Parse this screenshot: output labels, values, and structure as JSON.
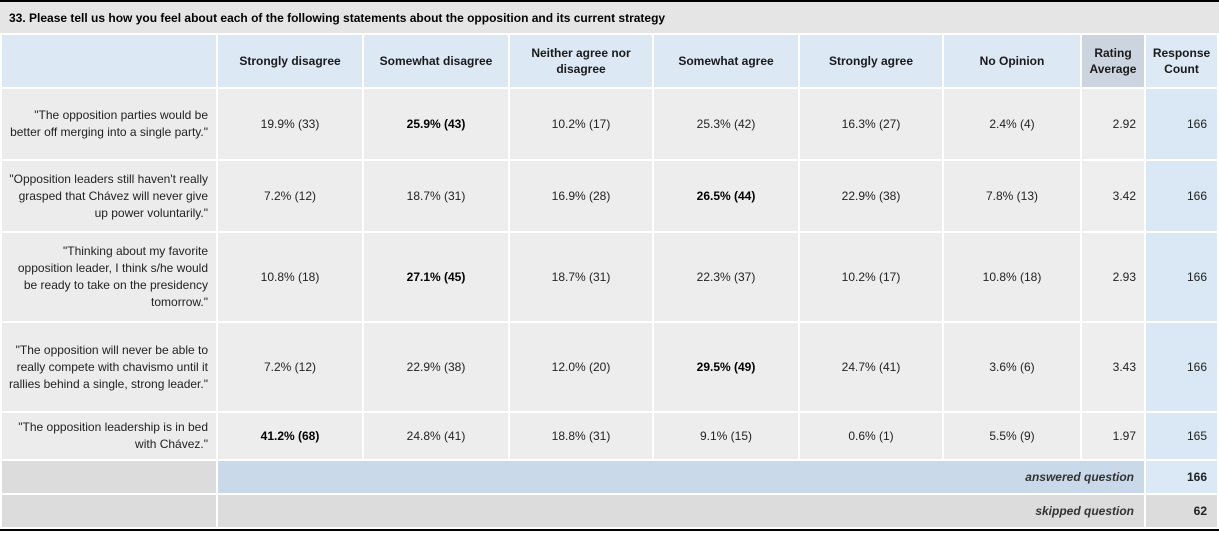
{
  "title": "33. Please tell us how you feel about each of the following statements about the opposition and its current strategy",
  "colors": {
    "header_blue": "#dce8f4",
    "rating_header_gray_blue": "#ccd5df",
    "count_header_blue": "#dde9f5",
    "row_gray": "#ededed",
    "count_column_blue": "#dae8f6",
    "answered_row_blue": "#c9d9e9",
    "skipped_row_gray": "#dcdcdc",
    "title_bar_gray": "#e5e5e5"
  },
  "chart_data": {
    "type": "table",
    "title": "33. Please tell us how you feel about each of the following statements about the opposition and its current strategy",
    "headers": [
      "Strongly disagree",
      "Somewhat disagree",
      "Neither agree nor disagree",
      "Somewhat agree",
      "Strongly agree",
      "No Opinion",
      "Rating Average",
      "Response Count"
    ],
    "rows": [
      {
        "statement": "\"The opposition parties would be better off merging into a single party.\"",
        "values": [
          "19.9% (33)",
          "25.9% (43)",
          "10.2% (17)",
          "25.3% (42)",
          "16.3% (27)",
          "2.4% (4)"
        ],
        "modal_index": 1,
        "modal_answer": "Somewhat disagree",
        "rating_average": "2.92",
        "response_count": "166"
      },
      {
        "statement": "\"Opposition leaders still haven't really grasped that Chávez will never give up power voluntarily.\"",
        "values": [
          "7.2% (12)",
          "18.7% (31)",
          "16.9% (28)",
          "26.5% (44)",
          "22.9% (38)",
          "7.8% (13)"
        ],
        "modal_index": 3,
        "modal_answer": "Somewhat agree",
        "rating_average": "3.42",
        "response_count": "166"
      },
      {
        "statement": "\"Thinking about my favorite opposition leader, I think s/he would be ready to take on the presidency tomorrow.\"",
        "values": [
          "10.8% (18)",
          "27.1% (45)",
          "18.7% (31)",
          "22.3% (37)",
          "10.2% (17)",
          "10.8% (18)"
        ],
        "modal_index": 1,
        "modal_answer": "Somewhat disagree",
        "rating_average": "2.93",
        "response_count": "166"
      },
      {
        "statement": "\"The opposition will never be able to really compete with chavismo until it rallies behind a single, strong leader.\"",
        "values": [
          "7.2% (12)",
          "22.9% (38)",
          "12.0% (20)",
          "29.5% (49)",
          "24.7% (41)",
          "3.6% (6)"
        ],
        "modal_index": 3,
        "modal_answer": "Somewhat agree",
        "rating_average": "3.43",
        "response_count": "166"
      },
      {
        "statement": "\"The opposition leadership is in bed with Chávez.\"",
        "values": [
          "41.2% (68)",
          "24.8% (41)",
          "18.8% (31)",
          "9.1% (15)",
          "0.6% (1)",
          "5.5% (9)"
        ],
        "modal_index": 0,
        "modal_answer": "Strongly disagree",
        "rating_average": "1.97",
        "response_count": "165"
      }
    ],
    "footer": {
      "answered_label": "answered question",
      "answered_count": "166",
      "skipped_label": "skipped question",
      "skipped_count": "62"
    }
  }
}
